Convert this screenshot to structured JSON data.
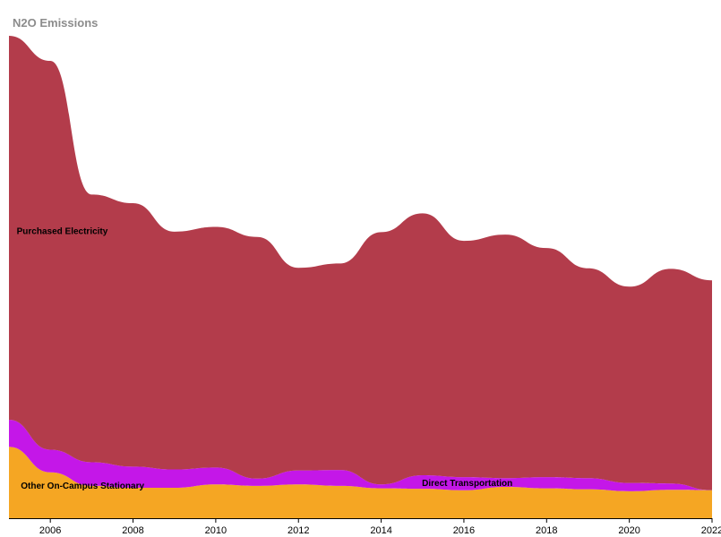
{
  "chart_data": {
    "type": "area",
    "title": "N2O Emissions",
    "xlabel": "",
    "ylabel": "",
    "stacked": true,
    "xlim": [
      2005,
      2022
    ],
    "ylim": [
      0,
      100
    ],
    "x_ticks": [
      2006,
      2008,
      2010,
      2012,
      2014,
      2016,
      2018,
      2020,
      2022
    ],
    "x": [
      2005,
      2006,
      2007,
      2008,
      2009,
      2010,
      2011,
      2012,
      2013,
      2014,
      2015,
      2016,
      2017,
      2018,
      2019,
      2020,
      2021,
      2022
    ],
    "series": [
      {
        "name": "Other On-Campus Stationary",
        "color": "#f5a623",
        "label_x": 2005.2,
        "values": [
          14.8,
          9.5,
          6.7,
          6.3,
          6.3,
          7.0,
          6.7,
          7.0,
          6.7,
          6.2,
          6.1,
          5.8,
          6.5,
          6.2,
          6.0,
          5.6,
          5.9,
          5.8
        ]
      },
      {
        "name": "Direct Transportation",
        "color": "#c417e8",
        "label_x": 2014.9,
        "values": [
          5.6,
          4.7,
          4.9,
          4.4,
          3.8,
          3.5,
          1.5,
          2.9,
          3.3,
          0.8,
          2.8,
          2.7,
          1.8,
          2.3,
          2.3,
          1.7,
          1.3,
          0.0
        ]
      },
      {
        "name": "Purchased Electricity",
        "color": "#b33c4b",
        "label_x": 2005.1,
        "values": [
          79.6,
          80.6,
          55.5,
          54.6,
          49.3,
          49.9,
          50.1,
          42.0,
          42.8,
          52.3,
          54.3,
          49.0,
          50.5,
          47.5,
          43.5,
          40.7,
          44.5,
          43.5
        ]
      }
    ]
  }
}
